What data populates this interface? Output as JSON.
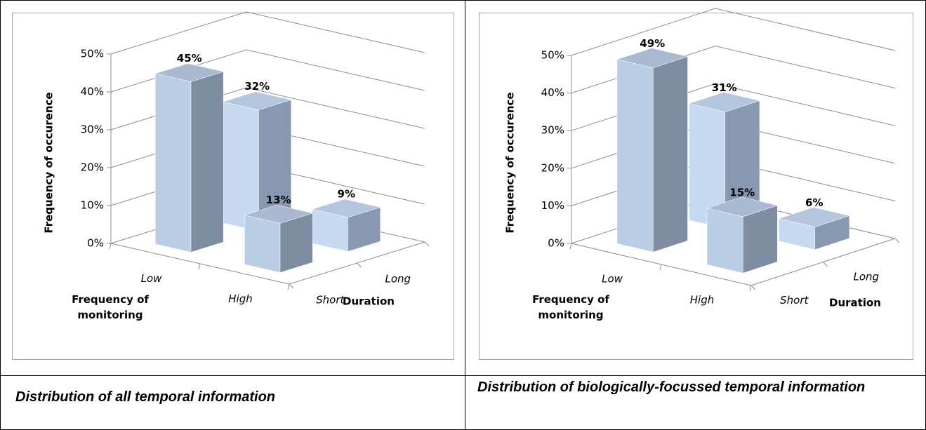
{
  "chart_data": [
    {
      "type": "bar",
      "categories": [
        "Low",
        "High"
      ],
      "x_label": "Frequency of monitoring",
      "y_label": "Frequency of occurence",
      "depth_label": "Duration",
      "series": [
        {
          "name": "Short",
          "color": "#b9cde5",
          "values": [
            45,
            13
          ],
          "value_labels": [
            "45%",
            "13%"
          ]
        },
        {
          "name": "Long",
          "color": "#c6d9f1",
          "values": [
            32,
            9
          ],
          "value_labels": [
            "32%",
            "9%"
          ]
        }
      ],
      "ylim": [
        0,
        50
      ],
      "yticks": [
        {
          "value": 0,
          "label": "0%"
        },
        {
          "value": 10,
          "label": "10%"
        },
        {
          "value": 20,
          "label": "20%"
        },
        {
          "value": 30,
          "label": "30%"
        },
        {
          "value": 40,
          "label": "40%"
        },
        {
          "value": 50,
          "label": "50%"
        }
      ],
      "grid": true
    },
    {
      "type": "bar",
      "categories": [
        "Low",
        "High"
      ],
      "x_label": "Frequency of monitoring",
      "y_label": "Frequency of occurence",
      "depth_label": "Duration",
      "series": [
        {
          "name": "Short",
          "color": "#b9cde5",
          "values": [
            49,
            15
          ],
          "value_labels": [
            "49%",
            "15%"
          ]
        },
        {
          "name": "Long",
          "color": "#c6d9f1",
          "values": [
            31,
            6
          ],
          "value_labels": [
            "31%",
            "6%"
          ]
        }
      ],
      "ylim": [
        0,
        50
      ],
      "yticks": [
        {
          "value": 0,
          "label": "0%"
        },
        {
          "value": 10,
          "label": "10%"
        },
        {
          "value": 20,
          "label": "20%"
        },
        {
          "value": 30,
          "label": "30%"
        },
        {
          "value": 40,
          "label": "40%"
        },
        {
          "value": 50,
          "label": "50%"
        }
      ],
      "grid": true
    }
  ],
  "captions": [
    "Distribution of all temporal information",
    "Distribution of biologically-focussed temporal information"
  ]
}
